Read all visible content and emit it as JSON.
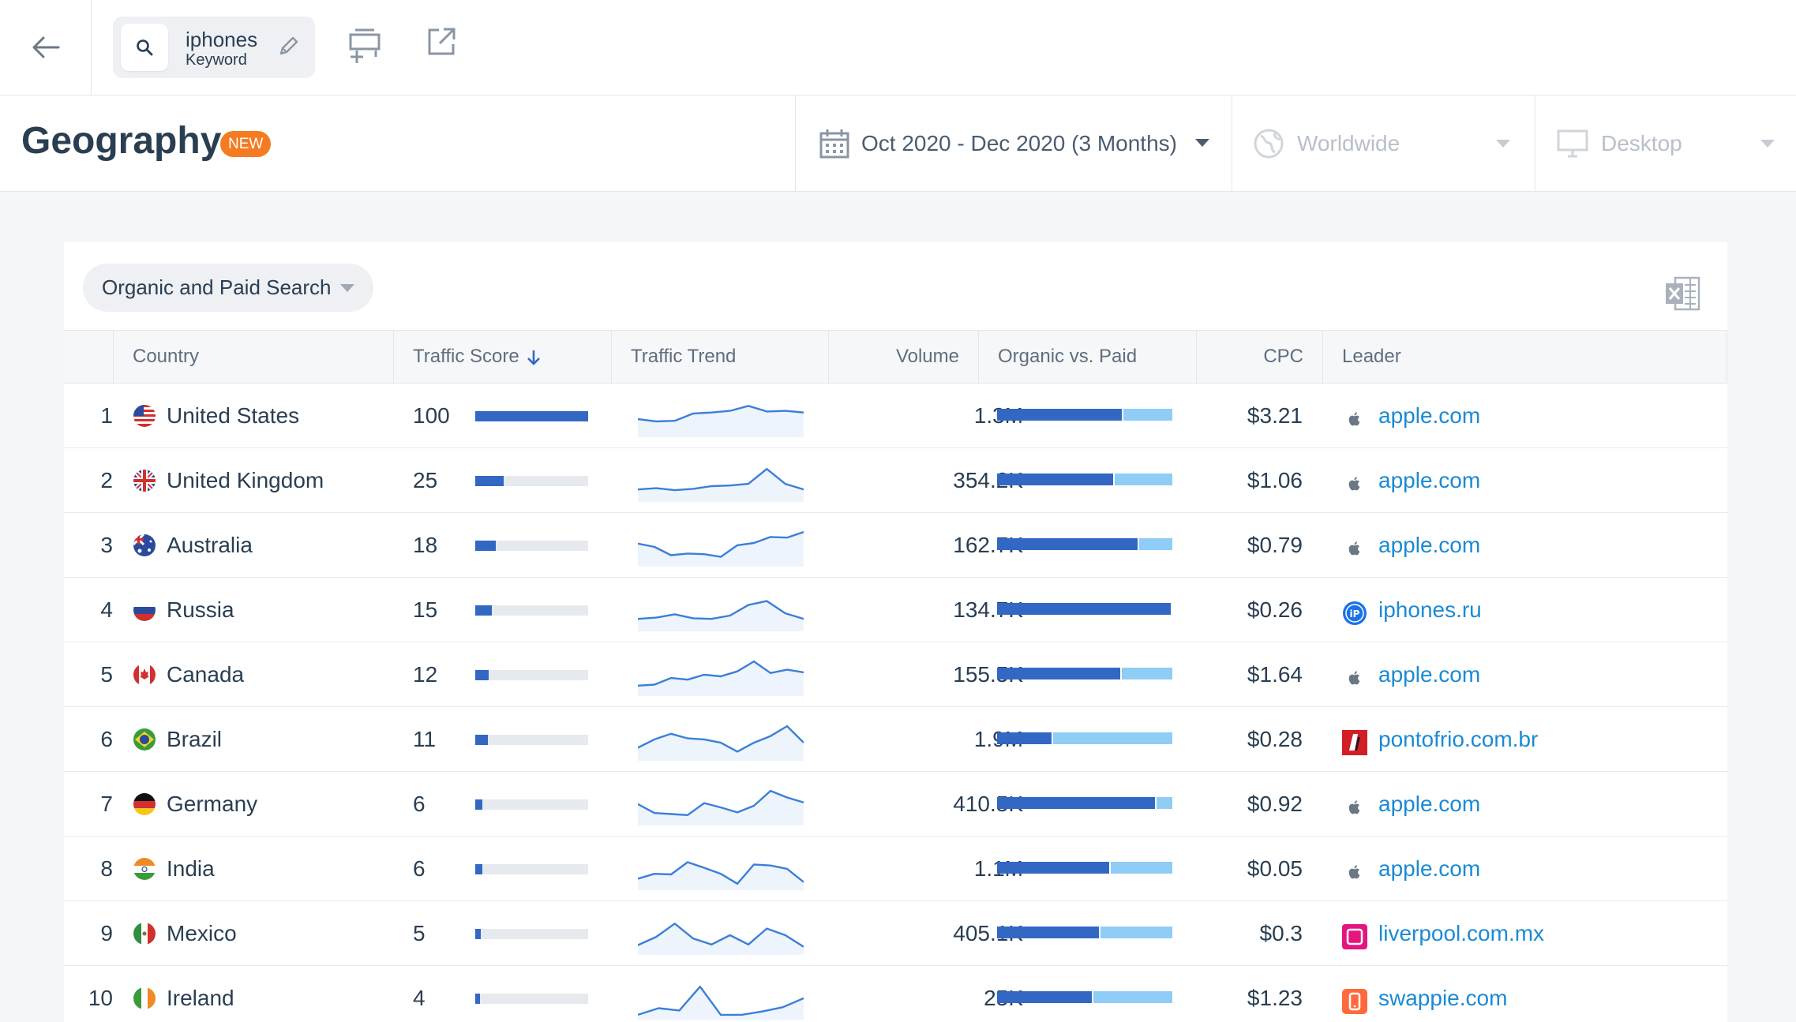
{
  "topbar": {
    "keyword": "iphones",
    "keyword_type": "Keyword"
  },
  "header": {
    "title": "Geography",
    "badge": "NEW",
    "date_range": "Oct 2020 - Dec 2020 (3 Months)",
    "region": "Worldwide",
    "device": "Desktop"
  },
  "card": {
    "search_type": "Organic and Paid Search"
  },
  "table": {
    "columns": {
      "country": "Country",
      "traffic_score": "Traffic Score",
      "traffic_trend": "Traffic Trend",
      "volume": "Volume",
      "organic_vs_paid": "Organic vs. Paid",
      "cpc": "CPC",
      "leader": "Leader"
    },
    "rows": [
      {
        "rank": "1",
        "country": "United States",
        "flag": "us-flag-icon",
        "score": "100",
        "score_fraction": 1.0,
        "trend": [
          0.55,
          0.62,
          0.6,
          0.38,
          0.35,
          0.3,
          0.15,
          0.32,
          0.3,
          0.35
        ],
        "volume": "1.3M",
        "organic_share": 0.72,
        "cpc": "$3.21",
        "leader": "apple.com",
        "leader_icon": "apple-logo-icon"
      },
      {
        "rank": "2",
        "country": "United Kingdom",
        "flag": "uk-flag-icon",
        "score": "25",
        "score_fraction": 0.25,
        "trend": [
          0.72,
          0.68,
          0.74,
          0.7,
          0.62,
          0.6,
          0.55,
          0.1,
          0.55,
          0.72
        ],
        "volume": "354.2K",
        "organic_share": 0.67,
        "cpc": "$1.06",
        "leader": "apple.com",
        "leader_icon": "apple-logo-icon"
      },
      {
        "rank": "3",
        "country": "Australia",
        "flag": "au-flag-icon",
        "score": "18",
        "score_fraction": 0.18,
        "trend": [
          0.4,
          0.5,
          0.75,
          0.7,
          0.72,
          0.8,
          0.45,
          0.38,
          0.2,
          0.22,
          0.05
        ],
        "volume": "162.7K",
        "organic_share": 0.81,
        "cpc": "$0.79",
        "leader": "apple.com",
        "leader_icon": "apple-logo-icon"
      },
      {
        "rank": "4",
        "country": "Russia",
        "flag": "ru-flag-icon",
        "score": "15",
        "score_fraction": 0.15,
        "trend": [
          0.72,
          0.68,
          0.58,
          0.7,
          0.72,
          0.62,
          0.3,
          0.18,
          0.55,
          0.72
        ],
        "volume": "134.7K",
        "organic_share": 1.0,
        "cpc": "$0.26",
        "leader": "iphones.ru",
        "leader_icon": "iphones-ru-logo-icon"
      },
      {
        "rank": "5",
        "country": "Canada",
        "flag": "ca-flag-icon",
        "score": "12",
        "score_fraction": 0.12,
        "trend": [
          0.78,
          0.75,
          0.55,
          0.6,
          0.45,
          0.5,
          0.35,
          0.05,
          0.4,
          0.3,
          0.38
        ],
        "volume": "155.5K",
        "organic_share": 0.71,
        "cpc": "$1.64",
        "leader": "apple.com",
        "leader_icon": "apple-logo-icon"
      },
      {
        "rank": "6",
        "country": "Brazil",
        "flag": "br-flag-icon",
        "score": "11",
        "score_fraction": 0.11,
        "trend": [
          0.7,
          0.45,
          0.28,
          0.42,
          0.45,
          0.55,
          0.82,
          0.55,
          0.35,
          0.05,
          0.55
        ],
        "volume": "1.9M",
        "organic_share": 0.32,
        "cpc": "$0.28",
        "leader": "pontofrio.com.br",
        "leader_icon": "pontofrio-logo-icon"
      },
      {
        "rank": "7",
        "country": "Germany",
        "flag": "de-flag-icon",
        "score": "6",
        "score_fraction": 0.06,
        "trend": [
          0.45,
          0.72,
          0.75,
          0.78,
          0.42,
          0.55,
          0.7,
          0.5,
          0.05,
          0.25,
          0.4
        ],
        "volume": "410.5K",
        "organic_share": 0.91,
        "cpc": "$0.92",
        "leader": "apple.com",
        "leader_icon": "apple-logo-icon"
      },
      {
        "rank": "8",
        "country": "India",
        "flag": "in-flag-icon",
        "score": "6",
        "score_fraction": 0.06,
        "trend": [
          0.75,
          0.6,
          0.62,
          0.25,
          0.42,
          0.6,
          0.9,
          0.32,
          0.35,
          0.45,
          0.85
        ],
        "volume": "1.1M",
        "organic_share": 0.65,
        "cpc": "$0.05",
        "leader": "apple.com",
        "leader_icon": "apple-logo-icon"
      },
      {
        "rank": "9",
        "country": "Mexico",
        "flag": "mx-flag-icon",
        "score": "5",
        "score_fraction": 0.05,
        "trend": [
          0.8,
          0.55,
          0.15,
          0.6,
          0.78,
          0.5,
          0.78,
          0.3,
          0.5,
          0.85
        ],
        "volume": "405.1K",
        "organic_share": 0.59,
        "cpc": "$0.3",
        "leader": "liverpool.com.mx",
        "leader_icon": "liverpool-logo-icon"
      },
      {
        "rank": "10",
        "country": "Ireland",
        "flag": "ie-flag-icon",
        "score": "4",
        "score_fraction": 0.04,
        "trend": [
          0.95,
          0.75,
          0.82,
          0.1,
          0.95,
          0.95,
          0.85,
          0.72,
          0.45
        ],
        "volume": "25K",
        "organic_share": 0.55,
        "cpc": "$1.23",
        "leader": "swappie.com",
        "leader_icon": "swappie-logo-icon"
      }
    ]
  }
}
